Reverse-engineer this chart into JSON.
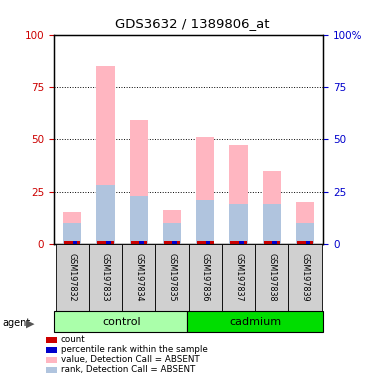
{
  "title": "GDS3632 / 1389806_at",
  "samples": [
    "GSM197832",
    "GSM197833",
    "GSM197834",
    "GSM197835",
    "GSM197836",
    "GSM197837",
    "GSM197838",
    "GSM197839"
  ],
  "pink_values": [
    15,
    85,
    59,
    16,
    51,
    47,
    35,
    20
  ],
  "lav_values": [
    10,
    28,
    23,
    10,
    21,
    19,
    19,
    10
  ],
  "red_values": [
    1.5,
    1.5,
    1.5,
    1.5,
    1.5,
    1.5,
    1.5,
    1.5
  ],
  "blue_values": [
    1.5,
    1.5,
    1.5,
    1.5,
    1.5,
    1.5,
    1.5,
    1.5
  ],
  "ylim": [
    0,
    100
  ],
  "left_ticks": [
    0,
    25,
    50,
    75,
    100
  ],
  "right_tick_labels": [
    "0",
    "25",
    "50",
    "75",
    "100%"
  ],
  "left_color": "#cc0000",
  "right_color": "#0000cc",
  "legend_items": [
    {
      "label": "count",
      "color": "#cc0000"
    },
    {
      "label": "percentile rank within the sample",
      "color": "#0000cc"
    },
    {
      "label": "value, Detection Call = ABSENT",
      "color": "#ffb6c1"
    },
    {
      "label": "rank, Detection Call = ABSENT",
      "color": "#b0c4de"
    }
  ],
  "ctrl_color": "#aaffaa",
  "cad_color": "#00dd00",
  "label_bg": "#d0d0d0"
}
